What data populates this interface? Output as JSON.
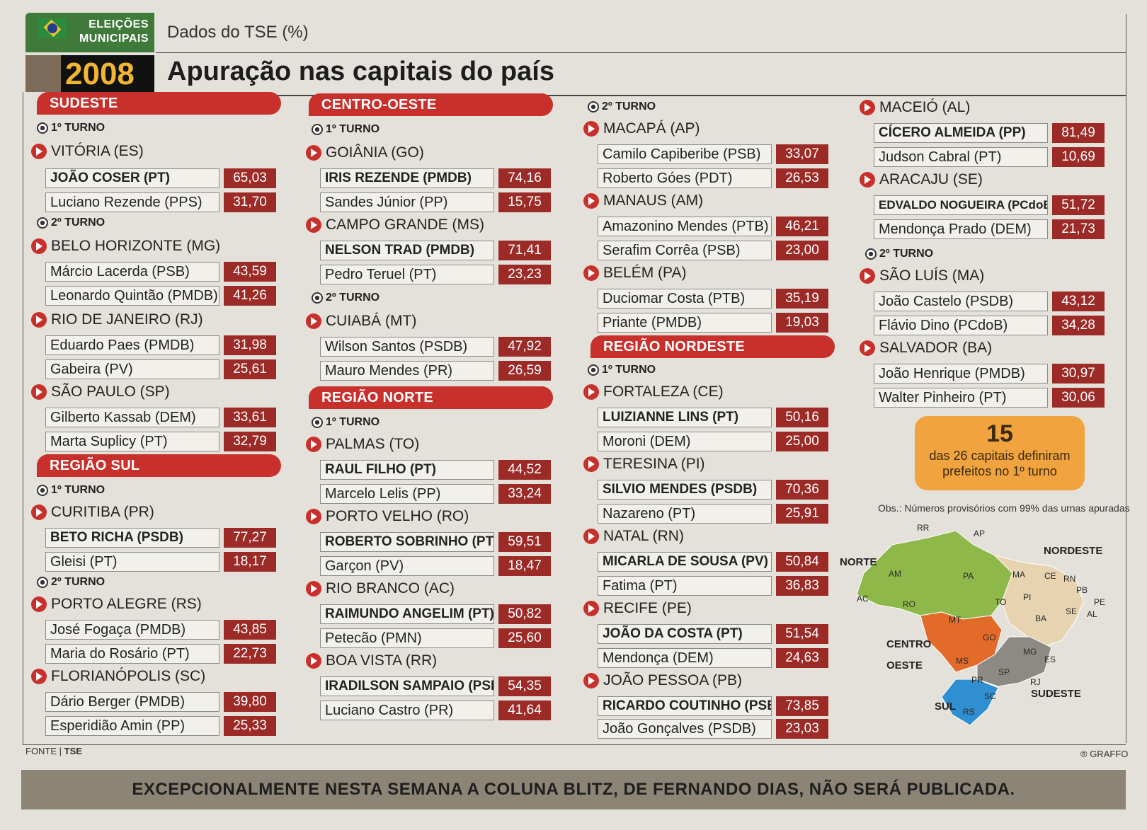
{
  "header": {
    "badge_line1": "ELEIÇÕES",
    "badge_line2": "MUNICIPAIS",
    "badge_year": "2008",
    "subtitle": "Dados do TSE (%)",
    "title": "Apuração nas capitais do país"
  },
  "colors": {
    "accent": "#c8302c",
    "pct_bg": "#9c2b27",
    "callout": "#f0a33e",
    "footer": "#8c8475"
  },
  "labels": {
    "turno1": "1º TURNO",
    "turno2": "2º TURNO"
  },
  "col1": {
    "sudeste": "SUDESTE",
    "sul": "REGIÃO SUL",
    "cities": [
      {
        "name": "VITÓRIA (ES)",
        "c": [
          {
            "n": "JOÃO COSER (PT)",
            "p": "65,03"
          },
          {
            "n": "Luciano Rezende (PPS)",
            "p": "31,70"
          }
        ]
      },
      {
        "name": "BELO HORIZONTE (MG)",
        "c": [
          {
            "n": "Márcio Lacerda (PSB)",
            "p": "43,59"
          },
          {
            "n": "Leonardo Quintão (PMDB)",
            "p": "41,26"
          }
        ]
      },
      {
        "name": "RIO DE JANEIRO (RJ)",
        "c": [
          {
            "n": "Eduardo Paes (PMDB)",
            "p": "31,98"
          },
          {
            "n": "Gabeira (PV)",
            "p": "25,61"
          }
        ]
      },
      {
        "name": "SÃO PAULO (SP)",
        "c": [
          {
            "n": "Gilberto Kassab (DEM)",
            "p": "33,61"
          },
          {
            "n": "Marta Suplicy (PT)",
            "p": "32,79"
          }
        ]
      },
      {
        "name": "CURITIBA (PR)",
        "c": [
          {
            "n": "BETO RICHA (PSDB)",
            "p": "77,27"
          },
          {
            "n": "Gleisi (PT)",
            "p": "18,17"
          }
        ]
      },
      {
        "name": "PORTO ALEGRE (RS)",
        "c": [
          {
            "n": "José Fogaça (PMDB)",
            "p": "43,85"
          },
          {
            "n": "Maria do Rosário (PT)",
            "p": "22,73"
          }
        ]
      },
      {
        "name": "FLORIANÓPOLIS (SC)",
        "c": [
          {
            "n": "Dário Berger (PMDB)",
            "p": "39,80"
          },
          {
            "n": "Esperidião Amin (PP)",
            "p": "25,33"
          }
        ]
      }
    ]
  },
  "col2": {
    "centro": "CENTRO-OESTE",
    "norte": "REGIÃO NORTE",
    "cities": [
      {
        "name": "GOIÂNIA (GO)",
        "c": [
          {
            "n": "IRIS REZENDE (PMDB)",
            "p": "74,16"
          },
          {
            "n": "Sandes Júnior (PP)",
            "p": "15,75"
          }
        ]
      },
      {
        "name": "CAMPO GRANDE (MS)",
        "c": [
          {
            "n": "NELSON TRAD (PMDB)",
            "p": "71,41"
          },
          {
            "n": "Pedro Teruel (PT)",
            "p": "23,23"
          }
        ]
      },
      {
        "name": "CUIABÁ (MT)",
        "c": [
          {
            "n": "Wilson Santos (PSDB)",
            "p": "47,92"
          },
          {
            "n": "Mauro Mendes (PR)",
            "p": "26,59"
          }
        ]
      },
      {
        "name": "PALMAS (TO)",
        "c": [
          {
            "n": "RAUL FILHO (PT)",
            "p": "44,52"
          },
          {
            "n": "Marcelo Lelis (PP)",
            "p": "33,24"
          }
        ]
      },
      {
        "name": "PORTO VELHO (RO)",
        "c": [
          {
            "n": "ROBERTO SOBRINHO (PT)",
            "p": "59,51"
          },
          {
            "n": "Garçon (PV)",
            "p": "18,47"
          }
        ]
      },
      {
        "name": "RIO BRANCO (AC)",
        "c": [
          {
            "n": "RAIMUNDO ANGELIM (PT)",
            "p": "50,82"
          },
          {
            "n": "Petecão (PMN)",
            "p": "25,60"
          }
        ]
      },
      {
        "name": "BOA VISTA (RR)",
        "c": [
          {
            "n": "IRADILSON SAMPAIO (PSB)",
            "p": "54,35"
          },
          {
            "n": "Luciano Castro (PR)",
            "p": "41,64"
          }
        ]
      }
    ]
  },
  "col3": {
    "nordeste": "REGIÃO NORDESTE",
    "cities": [
      {
        "name": "MACAPÁ (AP)",
        "c": [
          {
            "n": "Camilo Capiberibe (PSB)",
            "p": "33,07"
          },
          {
            "n": "Roberto Góes (PDT)",
            "p": "26,53"
          }
        ]
      },
      {
        "name": "MANAUS (AM)",
        "c": [
          {
            "n": "Amazonino Mendes (PTB)",
            "p": "46,21"
          },
          {
            "n": "Serafim Corrêa (PSB)",
            "p": "23,00"
          }
        ]
      },
      {
        "name": "BELÉM (PA)",
        "c": [
          {
            "n": "Duciomar Costa (PTB)",
            "p": "35,19"
          },
          {
            "n": "Priante (PMDB)",
            "p": "19,03"
          }
        ]
      },
      {
        "name": "FORTALEZA (CE)",
        "c": [
          {
            "n": "LUIZIANNE LINS (PT)",
            "p": "50,16"
          },
          {
            "n": "Moroni (DEM)",
            "p": "25,00"
          }
        ]
      },
      {
        "name": "TERESINA (PI)",
        "c": [
          {
            "n": "SILVIO MENDES (PSDB)",
            "p": "70,36"
          },
          {
            "n": "Nazareno (PT)",
            "p": "25,91"
          }
        ]
      },
      {
        "name": "NATAL (RN)",
        "c": [
          {
            "n": "MICARLA DE SOUSA (PV)",
            "p": "50,84"
          },
          {
            "n": "Fatima (PT)",
            "p": "36,83"
          }
        ]
      },
      {
        "name": "RECIFE (PE)",
        "c": [
          {
            "n": "JOÃO DA COSTA (PT)",
            "p": "51,54"
          },
          {
            "n": "Mendonça (DEM)",
            "p": "24,63"
          }
        ]
      },
      {
        "name": "JOÃO PESSOA (PB)",
        "c": [
          {
            "n": "RICARDO COUTINHO (PSB)",
            "p": "73,85"
          },
          {
            "n": "João Gonçalves (PSDB)",
            "p": "23,03"
          }
        ]
      }
    ]
  },
  "col4": {
    "cities": [
      {
        "name": "MACEIÓ (AL)",
        "c": [
          {
            "n": "CÍCERO ALMEIDA (PP)",
            "p": "81,49"
          },
          {
            "n": "Judson Cabral (PT)",
            "p": "10,69"
          }
        ]
      },
      {
        "name": "ARACAJU (SE)",
        "c": [
          {
            "n": "EDVALDO NOGUEIRA (PCdoB)",
            "p": "51,72"
          },
          {
            "n": "Mendonça Prado (DEM)",
            "p": "21,73"
          }
        ]
      },
      {
        "name": "SÃO LUÍS (MA)",
        "c": [
          {
            "n": "João Castelo (PSDB)",
            "p": "43,12"
          },
          {
            "n": "Flávio Dino (PCdoB)",
            "p": "34,28"
          }
        ]
      },
      {
        "name": "SALVADOR (BA)",
        "c": [
          {
            "n": "João Henrique (PMDB)",
            "p": "30,97"
          },
          {
            "n": "Walter Pinheiro (PT)",
            "p": "30,06"
          }
        ]
      }
    ]
  },
  "callout": {
    "number": "15",
    "text": "das 26 capitais definiram prefeitos no 1º turno"
  },
  "obs": "Obs.: Números provisórios com 99% das urnas apuradas",
  "map": {
    "regions": {
      "norte": "NORTE",
      "nordeste": "NORDESTE",
      "centro1": "CENTRO",
      "centro2": "OESTE",
      "sudeste": "SUDESTE",
      "sul": "SUL"
    },
    "states": [
      "RR",
      "AP",
      "AM",
      "PA",
      "MA",
      "CE",
      "RN",
      "PB",
      "PI",
      "PE",
      "AL",
      "AC",
      "RO",
      "TO",
      "SE",
      "BA",
      "MT",
      "GO",
      "MG",
      "ES",
      "MS",
      "RJ",
      "PR",
      "SC",
      "RS",
      "SP"
    ]
  },
  "footer": {
    "fonte_label": "FONTE",
    "fonte_value": "TSE",
    "credit": "® GRAFFO",
    "notice": "EXCEPCIONALMENTE NESTA SEMANA A COLUNA BLITZ, DE FERNANDO DIAS, NÃO SERÁ PUBLICADA."
  }
}
